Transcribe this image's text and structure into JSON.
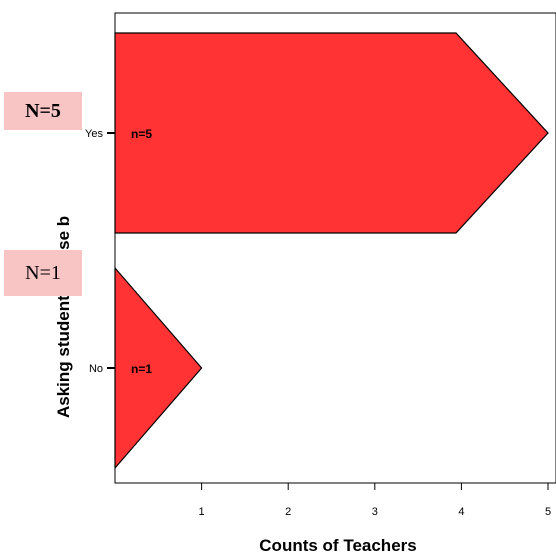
{
  "chart_data": {
    "type": "bar",
    "orientation": "horizontal",
    "categories": [
      "Yes",
      "No"
    ],
    "values": [
      5,
      1
    ],
    "data_labels": [
      "n=5",
      "n=1"
    ],
    "xlabel": "Counts of Teachers",
    "ylabel": "Asking students to use b",
    "xlim": [
      0,
      5
    ],
    "xticks": [
      "1",
      "2",
      "3",
      "4",
      "5"
    ],
    "bar_color": "#ff3333",
    "bar_shape": "arrow",
    "grid": false
  },
  "annotations": [
    {
      "label": "N=5"
    },
    {
      "label": "N=1"
    }
  ]
}
